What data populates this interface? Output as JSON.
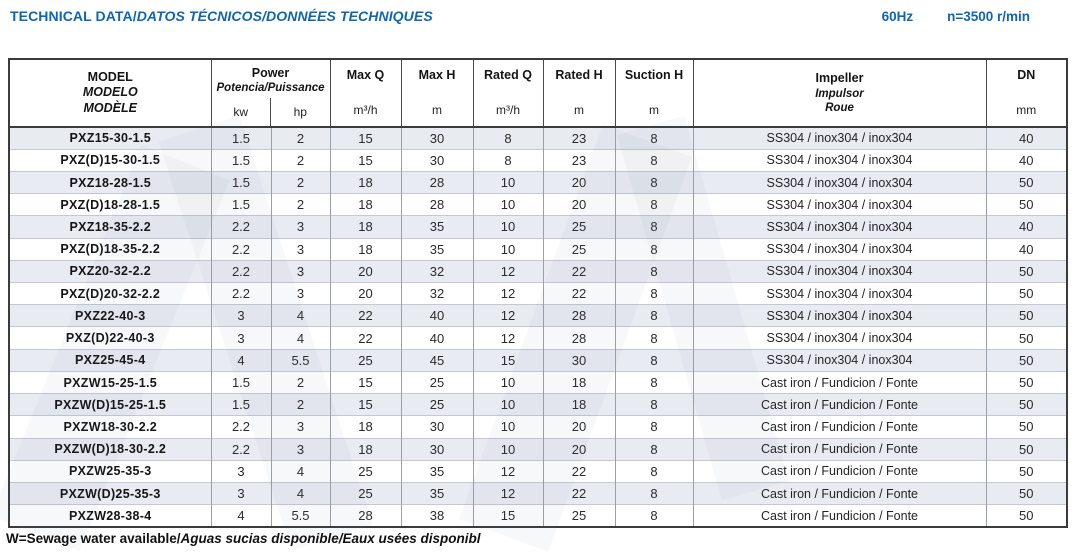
{
  "page": {
    "title_en": "TECHNICAL DATA/",
    "title_intl": "DATOS TÉCNICOS/DONNÉES TECHNIQUES",
    "frequency": "60Hz",
    "speed": "n=3500 r/min",
    "footnote_en": "W=Sewage water available/",
    "footnote_intl": "Aguas sucias disponible/Eaux usées disponibl"
  },
  "colors": {
    "accent_blue": "#1065b3",
    "row_stripe": "#e9ebf3",
    "border_dark": "#3b3b3b",
    "border_vertical": "#9aa0aa",
    "border_row": "#c3c8d2"
  },
  "table": {
    "header": {
      "model_lines": [
        "MODEL",
        "MODELO",
        "MODÈLE"
      ],
      "power_label": "Power",
      "power_sublabel": "Potencia/Puissance",
      "power_unit_kw": "kw",
      "power_unit_hp": "hp",
      "max_q_label": "Max Q",
      "max_q_unit": "m³/h",
      "max_h_label": "Max H",
      "max_h_unit": "m",
      "rated_q_label": "Rated Q",
      "rated_q_unit": "m³/h",
      "rated_h_label": "Rated H",
      "rated_h_unit": "m",
      "suction_h_label": "Suction H",
      "suction_h_unit": "m",
      "impeller_lines": [
        "Impeller",
        "Impulsor",
        "Roue"
      ],
      "dn_label": "DN",
      "dn_unit": "mm"
    },
    "rows": [
      {
        "model": "PXZ15-30-1.5",
        "kw": 1.5,
        "hp": 2,
        "max_q": 15,
        "max_h": 30,
        "rated_q": 8,
        "rated_h": 23,
        "suction_h": 8,
        "impeller": "SS304 / inox304 / inox304",
        "dn": 40
      },
      {
        "model": "PXZ(D)15-30-1.5",
        "kw": 1.5,
        "hp": 2,
        "max_q": 15,
        "max_h": 30,
        "rated_q": 8,
        "rated_h": 23,
        "suction_h": 8,
        "impeller": "SS304 / inox304 / inox304",
        "dn": 40
      },
      {
        "model": "PXZ18-28-1.5",
        "kw": 1.5,
        "hp": 2,
        "max_q": 18,
        "max_h": 28,
        "rated_q": 10,
        "rated_h": 20,
        "suction_h": 8,
        "impeller": "SS304 / inox304 / inox304",
        "dn": 50
      },
      {
        "model": "PXZ(D)18-28-1.5",
        "kw": 1.5,
        "hp": 2,
        "max_q": 18,
        "max_h": 28,
        "rated_q": 10,
        "rated_h": 20,
        "suction_h": 8,
        "impeller": "SS304 / inox304 / inox304",
        "dn": 50
      },
      {
        "model": "PXZ18-35-2.2",
        "kw": 2.2,
        "hp": 3,
        "max_q": 18,
        "max_h": 35,
        "rated_q": 10,
        "rated_h": 25,
        "suction_h": 8,
        "impeller": "SS304 / inox304 / inox304",
        "dn": 40
      },
      {
        "model": "PXZ(D)18-35-2.2",
        "kw": 2.2,
        "hp": 3,
        "max_q": 18,
        "max_h": 35,
        "rated_q": 10,
        "rated_h": 25,
        "suction_h": 8,
        "impeller": "SS304 / inox304 / inox304",
        "dn": 40
      },
      {
        "model": "PXZ20-32-2.2",
        "kw": 2.2,
        "hp": 3,
        "max_q": 20,
        "max_h": 32,
        "rated_q": 12,
        "rated_h": 22,
        "suction_h": 8,
        "impeller": "SS304 / inox304 / inox304",
        "dn": 50
      },
      {
        "model": "PXZ(D)20-32-2.2",
        "kw": 2.2,
        "hp": 3,
        "max_q": 20,
        "max_h": 32,
        "rated_q": 12,
        "rated_h": 22,
        "suction_h": 8,
        "impeller": "SS304 / inox304 / inox304",
        "dn": 50
      },
      {
        "model": "PXZ22-40-3",
        "kw": 3,
        "hp": 4,
        "max_q": 22,
        "max_h": 40,
        "rated_q": 12,
        "rated_h": 28,
        "suction_h": 8,
        "impeller": "SS304 / inox304 / inox304",
        "dn": 50
      },
      {
        "model": "PXZ(D)22-40-3",
        "kw": 3,
        "hp": 4,
        "max_q": 22,
        "max_h": 40,
        "rated_q": 12,
        "rated_h": 28,
        "suction_h": 8,
        "impeller": "SS304 / inox304 / inox304",
        "dn": 50
      },
      {
        "model": "PXZ25-45-4",
        "kw": 4,
        "hp": 5.5,
        "max_q": 25,
        "max_h": 45,
        "rated_q": 15,
        "rated_h": 30,
        "suction_h": 8,
        "impeller": "SS304 / inox304 / inox304",
        "dn": 50
      },
      {
        "model": "PXZW15-25-1.5",
        "kw": 1.5,
        "hp": 2,
        "max_q": 15,
        "max_h": 25,
        "rated_q": 10,
        "rated_h": 18,
        "suction_h": 8,
        "impeller": "Cast iron / Fundicion / Fonte",
        "dn": 50
      },
      {
        "model": "PXZW(D)15-25-1.5",
        "kw": 1.5,
        "hp": 2,
        "max_q": 15,
        "max_h": 25,
        "rated_q": 10,
        "rated_h": 18,
        "suction_h": 8,
        "impeller": "Cast iron / Fundicion / Fonte",
        "dn": 50
      },
      {
        "model": "PXZW18-30-2.2",
        "kw": 2.2,
        "hp": 3,
        "max_q": 18,
        "max_h": 30,
        "rated_q": 10,
        "rated_h": 20,
        "suction_h": 8,
        "impeller": "Cast iron / Fundicion / Fonte",
        "dn": 50
      },
      {
        "model": "PXZW(D)18-30-2.2",
        "kw": 2.2,
        "hp": 3,
        "max_q": 18,
        "max_h": 30,
        "rated_q": 10,
        "rated_h": 20,
        "suction_h": 8,
        "impeller": "Cast iron / Fundicion / Fonte",
        "dn": 50
      },
      {
        "model": "PXZW25-35-3",
        "kw": 3,
        "hp": 4,
        "max_q": 25,
        "max_h": 35,
        "rated_q": 12,
        "rated_h": 22,
        "suction_h": 8,
        "impeller": "Cast iron / Fundicion / Fonte",
        "dn": 50
      },
      {
        "model": "PXZW(D)25-35-3",
        "kw": 3,
        "hp": 4,
        "max_q": 25,
        "max_h": 35,
        "rated_q": 12,
        "rated_h": 22,
        "suction_h": 8,
        "impeller": "Cast iron / Fundicion / Fonte",
        "dn": 50
      },
      {
        "model": "PXZW28-38-4",
        "kw": 4,
        "hp": 5.5,
        "max_q": 28,
        "max_h": 38,
        "rated_q": 15,
        "rated_h": 25,
        "suction_h": 8,
        "impeller": "Cast iron / Fundicion / Fonte",
        "dn": 50
      }
    ]
  }
}
